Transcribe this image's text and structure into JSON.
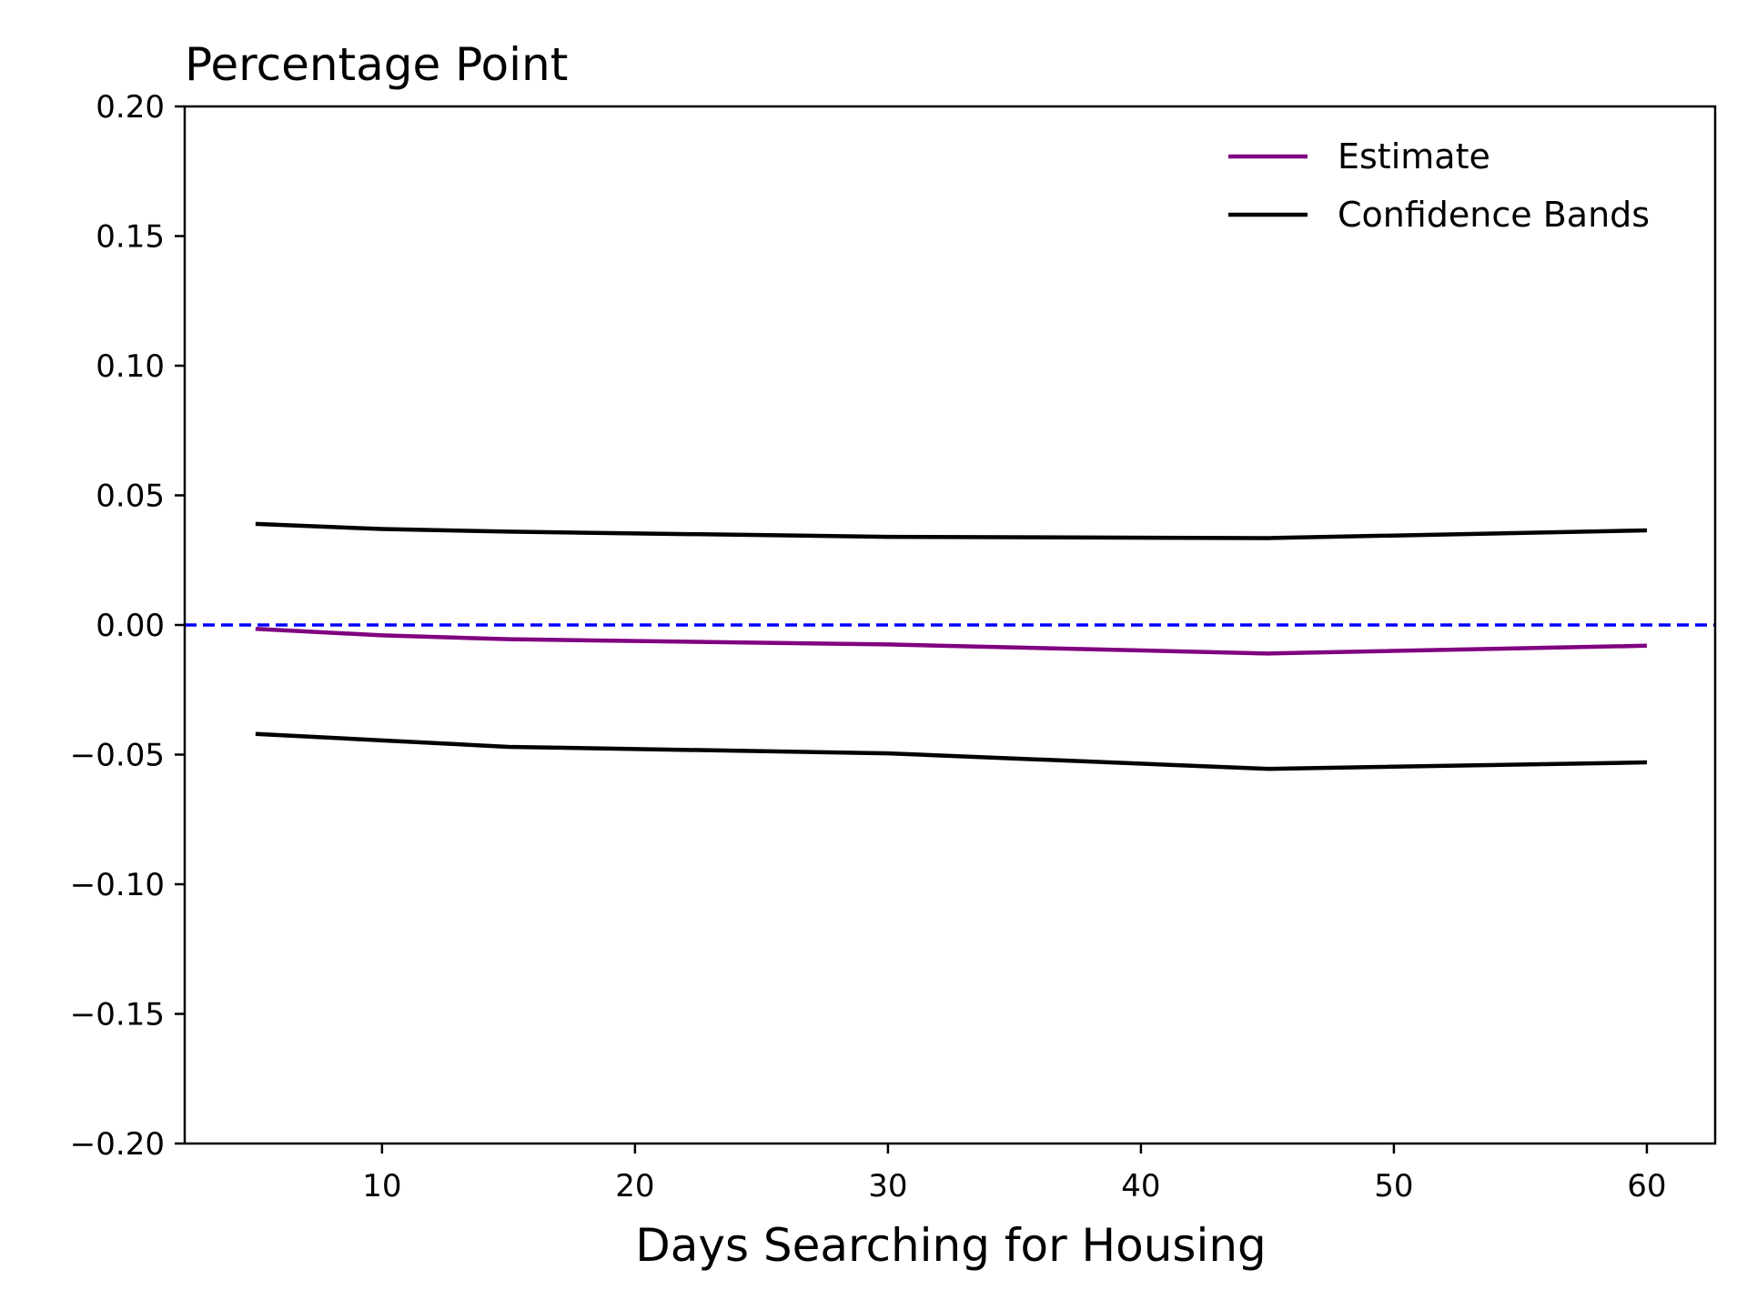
{
  "chart_data": {
    "type": "line",
    "title": "Percentage Point",
    "xlabel": "Days Searching for Housing",
    "ylabel": "",
    "xlim": [
      2.2,
      62.7
    ],
    "ylim": [
      -0.2,
      0.2
    ],
    "xticks": [
      10,
      20,
      30,
      40,
      50,
      60
    ],
    "xtick_labels": [
      "10",
      "20",
      "30",
      "40",
      "50",
      "60"
    ],
    "yticks": [
      -0.2,
      -0.15,
      -0.1,
      -0.05,
      0.0,
      0.05,
      0.1,
      0.15,
      0.2
    ],
    "ytick_labels": [
      "−0.20",
      "−0.15",
      "−0.10",
      "−0.05",
      "0.00",
      "0.05",
      "0.10",
      "0.15",
      "0.20"
    ],
    "x": [
      5,
      10,
      15,
      30,
      45,
      60
    ],
    "series": [
      {
        "name": "Estimate",
        "color": "#800080",
        "values": [
          -0.0015,
          -0.004,
          -0.0055,
          -0.0075,
          -0.011,
          -0.008
        ]
      },
      {
        "name": "Confidence Bands",
        "color": "#000000",
        "values": [
          0.039,
          0.037,
          0.036,
          0.034,
          0.0335,
          0.0365
        ]
      },
      {
        "color": "#000000",
        "values": [
          -0.042,
          -0.0445,
          -0.047,
          -0.0495,
          -0.0555,
          -0.053
        ]
      }
    ],
    "reference_lines": [
      {
        "axis": "y",
        "value": 0.0,
        "color": "#0000ff",
        "style": "dashed"
      }
    ],
    "legend": {
      "placement": "top-right",
      "entries": [
        {
          "label": "Estimate",
          "color": "#800080"
        },
        {
          "label": "Confidence Bands",
          "color": "#000000"
        }
      ]
    },
    "grid": false
  }
}
